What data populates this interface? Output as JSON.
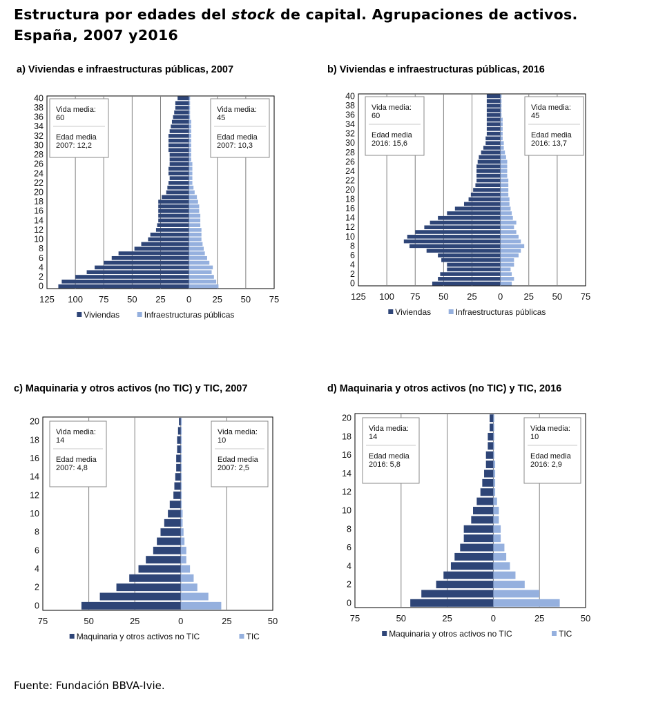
{
  "title": {
    "part1": "Estructura por edades del ",
    "italic": "stock",
    "part2": " de capital. Agrupaciones de activos. España, 2007 y2016"
  },
  "source": "Fuente: Fundación BBVA-Ivie.",
  "colors": {
    "left_series": "#2e4577",
    "right_series": "#95b0de",
    "grid": "#7f7f7f",
    "frame": "#000000"
  },
  "chart_data": [
    {
      "type": "bar",
      "orientation": "horizontal-population-pyramid",
      "title": "a) Viviendas e infraestructuras públicas, 2007",
      "x_tick_labels": [
        "125",
        "100",
        "75",
        "50",
        "25",
        "0",
        "25",
        "50",
        "75"
      ],
      "xlim_left": 125,
      "xlim_right": 75,
      "y_ticks": [
        0,
        2,
        4,
        6,
        8,
        10,
        12,
        14,
        16,
        18,
        20,
        22,
        24,
        26,
        28,
        30,
        32,
        34,
        36,
        38,
        40
      ],
      "categories": [
        0,
        1,
        2,
        3,
        4,
        5,
        6,
        7,
        8,
        9,
        10,
        11,
        12,
        13,
        14,
        15,
        16,
        17,
        18,
        19,
        20,
        21,
        22,
        23,
        24,
        25,
        26,
        27,
        28,
        29,
        30,
        31,
        32,
        33,
        34,
        35,
        36,
        37,
        38,
        39,
        40
      ],
      "series": [
        {
          "name": "Viviendas",
          "side": "left",
          "values": [
            115,
            112,
            100,
            90,
            83,
            75,
            68,
            62,
            48,
            42,
            36,
            34,
            29,
            28,
            27,
            27,
            27,
            27,
            27,
            24,
            20,
            19,
            18,
            17,
            18,
            18,
            17,
            17,
            17,
            18,
            18,
            18,
            18,
            17,
            16,
            15,
            14,
            13,
            12,
            12,
            10
          ]
        },
        {
          "name": "Infraestructuras públicas",
          "side": "right",
          "values": [
            26,
            24,
            22,
            20,
            21,
            18,
            16,
            14,
            13,
            12,
            11,
            11,
            11,
            10,
            10,
            10,
            9,
            9,
            8,
            7,
            5,
            4,
            3,
            3,
            3,
            3,
            3,
            2,
            2,
            2,
            2,
            2,
            2,
            2,
            2,
            2,
            1,
            1,
            1,
            1,
            1
          ]
        }
      ],
      "annotations": [
        {
          "side": "left",
          "life_label": "Vida media:",
          "life_value": "60",
          "age_label": "Edad media",
          "age_value": "2007: 12,2"
        },
        {
          "side": "right",
          "life_label": "Vida media:",
          "life_value": "45",
          "age_label": "Edad media",
          "age_value": "2007: 10,3"
        }
      ]
    },
    {
      "type": "bar",
      "orientation": "horizontal-population-pyramid",
      "title": "b) Viviendas e infraestructuras públicas, 2016",
      "x_tick_labels": [
        "125",
        "100",
        "75",
        "50",
        "25",
        "0",
        "25",
        "50",
        "75"
      ],
      "xlim_left": 125,
      "xlim_right": 75,
      "y_ticks": [
        0,
        2,
        4,
        6,
        8,
        10,
        12,
        14,
        16,
        18,
        20,
        22,
        24,
        26,
        28,
        30,
        32,
        34,
        36,
        38,
        40
      ],
      "categories": [
        0,
        1,
        2,
        3,
        4,
        5,
        6,
        7,
        8,
        9,
        10,
        11,
        12,
        13,
        14,
        15,
        16,
        17,
        18,
        19,
        20,
        21,
        22,
        23,
        24,
        25,
        26,
        27,
        28,
        29,
        30,
        31,
        32,
        33,
        34,
        35,
        36,
        37,
        38,
        39,
        40
      ],
      "series": [
        {
          "name": "Viviendas",
          "side": "left",
          "values": [
            60,
            55,
            53,
            47,
            47,
            52,
            55,
            65,
            80,
            85,
            82,
            75,
            67,
            62,
            55,
            47,
            40,
            32,
            28,
            26,
            24,
            22,
            21,
            21,
            21,
            21,
            20,
            19,
            17,
            15,
            13,
            13,
            12,
            12,
            12,
            12,
            12,
            12,
            12,
            12,
            12
          ]
        },
        {
          "name": "Infraestructuras públicas",
          "side": "right",
          "values": [
            10,
            12,
            10,
            9,
            12,
            12,
            16,
            18,
            21,
            18,
            16,
            14,
            12,
            14,
            11,
            10,
            9,
            8,
            8,
            7,
            7,
            7,
            7,
            6,
            6,
            6,
            6,
            5,
            4,
            3,
            3,
            2,
            2,
            2,
            2,
            2,
            1,
            1,
            1,
            1,
            1
          ]
        }
      ],
      "annotations": [
        {
          "side": "left",
          "life_label": "Vida media:",
          "life_value": "60",
          "age_label": "Edad media",
          "age_value": "2016: 15,6"
        },
        {
          "side": "right",
          "life_label": "Vida media:",
          "life_value": "45",
          "age_label": "Edad media",
          "age_value": "2016: 13,7"
        }
      ]
    },
    {
      "type": "bar",
      "orientation": "horizontal-population-pyramid",
      "title": "c) Maquinaria y otros activos (no TIC) y TIC, 2007",
      "x_tick_labels": [
        "75",
        "50",
        "25",
        "0",
        "25",
        "50"
      ],
      "xlim_left": 75,
      "xlim_right": 50,
      "y_ticks": [
        0,
        2,
        4,
        6,
        8,
        10,
        12,
        14,
        16,
        18,
        20
      ],
      "categories": [
        0,
        1,
        2,
        3,
        4,
        5,
        6,
        7,
        8,
        9,
        10,
        11,
        12,
        13,
        14,
        15,
        16,
        17,
        18,
        19,
        20
      ],
      "series": [
        {
          "name": "Maquinaria y otros activos no TIC",
          "side": "left",
          "values": [
            54,
            44,
            35,
            28,
            23,
            19,
            15,
            13,
            11,
            9,
            7,
            6,
            4,
            3.5,
            3,
            2.5,
            2.5,
            2,
            2,
            1.5,
            1
          ]
        },
        {
          "name": "TIC",
          "side": "right",
          "values": [
            22,
            15,
            9,
            7,
            5,
            3,
            3,
            2,
            1.5,
            1,
            1,
            0.5,
            0.5,
            0.5,
            0.5,
            0.5,
            0.5,
            0.5,
            0.5,
            0.5,
            0.5
          ]
        }
      ],
      "annotations": [
        {
          "side": "left",
          "life_label": "Vida media:",
          "life_value": "14",
          "age_label": "Edad media",
          "age_value": "2007: 4,8"
        },
        {
          "side": "right",
          "life_label": "Vida media:",
          "life_value": "10",
          "age_label": "Edad media",
          "age_value": "2007: 2,5"
        }
      ]
    },
    {
      "type": "bar",
      "orientation": "horizontal-population-pyramid",
      "title": "d) Maquinaria y otros activos (no TIC) y TIC, 2016",
      "x_tick_labels": [
        "75",
        "50",
        "25",
        "0",
        "25",
        "50"
      ],
      "xlim_left": 75,
      "xlim_right": 50,
      "y_ticks": [
        0,
        2,
        4,
        6,
        8,
        10,
        12,
        14,
        16,
        18,
        20
      ],
      "categories": [
        0,
        1,
        2,
        3,
        4,
        5,
        6,
        7,
        8,
        9,
        10,
        11,
        12,
        13,
        14,
        15,
        16,
        17,
        18,
        19,
        20
      ],
      "series": [
        {
          "name": "Maquinaria y otros activos no TIC",
          "side": "left",
          "values": [
            45,
            39,
            31,
            27,
            23,
            21,
            18,
            16,
            16,
            12,
            11,
            9,
            7,
            6,
            5,
            4,
            4,
            3,
            3,
            2,
            2
          ]
        },
        {
          "name": "TIC",
          "side": "right",
          "values": [
            36,
            25,
            17,
            12,
            9,
            7,
            6,
            4,
            4,
            3,
            3,
            2,
            1,
            1,
            1,
            1,
            0.5,
            0.5,
            0.5,
            0.5,
            0.5
          ]
        }
      ],
      "annotations": [
        {
          "side": "left",
          "life_label": "Vida media:",
          "life_value": "14",
          "age_label": "Edad media",
          "age_value": "2016: 5,8"
        },
        {
          "side": "right",
          "life_label": "Vida media:",
          "life_value": "10",
          "age_label": "Edad media",
          "age_value": "2016: 2,9"
        }
      ]
    }
  ]
}
